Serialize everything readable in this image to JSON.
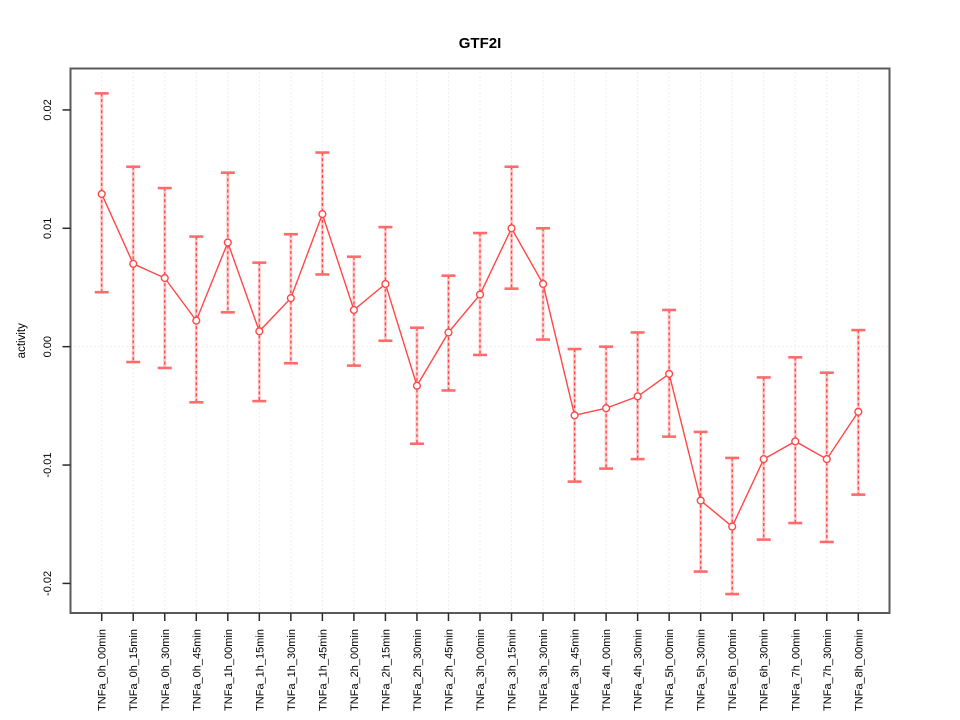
{
  "chart_data": {
    "type": "line",
    "title": "GTF2I",
    "xlabel": "",
    "ylabel": "activity",
    "legend": "none",
    "grid": "vertical dotted gridlines at each category; dotted horizontal line at y=0",
    "ylim": [
      -0.0225,
      0.0235
    ],
    "yticks": [
      0.02,
      0.01,
      0,
      -0.01,
      -0.02
    ],
    "ytick_labels": [
      "0.02",
      "0.01",
      "0.00",
      "-0.01",
      "-0.02"
    ],
    "categories": [
      "TNFa_0h_00min",
      "TNFa_0h_15min",
      "TNFa_0h_30min",
      "TNFa_0h_45min",
      "TNFa_1h_00min",
      "TNFa_1h_15min",
      "TNFa_1h_30min",
      "TNFa_1h_45min",
      "TNFa_2h_00min",
      "TNFa_2h_15min",
      "TNFa_2h_30min",
      "TNFa_2h_45min",
      "TNFa_3h_00min",
      "TNFa_3h_15min",
      "TNFa_3h_30min",
      "TNFa_3h_45min",
      "TNFa_4h_00min",
      "TNFa_4h_30min",
      "TNFa_5h_00min",
      "TNFa_5h_30min",
      "TNFa_6h_00min",
      "TNFa_6h_30min",
      "TNFa_7h_00min",
      "TNFa_7h_30min",
      "TNFa_8h_00min"
    ],
    "series": [
      {
        "name": "activity",
        "marker": "open-circle",
        "values": [
          0.0129,
          0.007,
          0.0058,
          0.0022,
          0.0088,
          0.0013,
          0.0041,
          0.0112,
          0.0031,
          0.0053,
          -0.0033,
          0.0012,
          0.0044,
          0.01,
          0.0053,
          -0.0058,
          -0.0052,
          -0.0042,
          -0.0023,
          -0.013,
          -0.0152,
          -0.0095,
          -0.008,
          -0.0095,
          -0.0055
        ],
        "upper": [
          0.0214,
          0.0152,
          0.0134,
          0.0093,
          0.0147,
          0.0071,
          0.0095,
          0.0164,
          0.0076,
          0.0101,
          0.0016,
          0.006,
          0.0096,
          0.0152,
          0.01,
          -0.0002,
          0.0,
          0.0012,
          0.0031,
          -0.0072,
          -0.0094,
          -0.0026,
          -0.0009,
          -0.0022,
          0.0014
        ],
        "lower": [
          0.0046,
          -0.0013,
          -0.0018,
          -0.0047,
          0.0029,
          -0.0046,
          -0.0014,
          0.0061,
          -0.0016,
          0.0005,
          -0.0082,
          -0.0037,
          -0.0007,
          0.0049,
          0.0006,
          -0.0114,
          -0.0103,
          -0.0095,
          -0.0076,
          -0.019,
          -0.0209,
          -0.0163,
          -0.0149,
          -0.0165,
          -0.0125
        ]
      }
    ]
  },
  "colors": {
    "series_red": "#ff4747",
    "error_bar_band": "rgba(255,90,90,0.32)",
    "error_bar_cap": "#ff6b6b",
    "grid_gray": "#dcdcdc",
    "box_gray": "#5a5a5a",
    "tick_black": "#2b2b2b",
    "background": "#ffffff"
  }
}
